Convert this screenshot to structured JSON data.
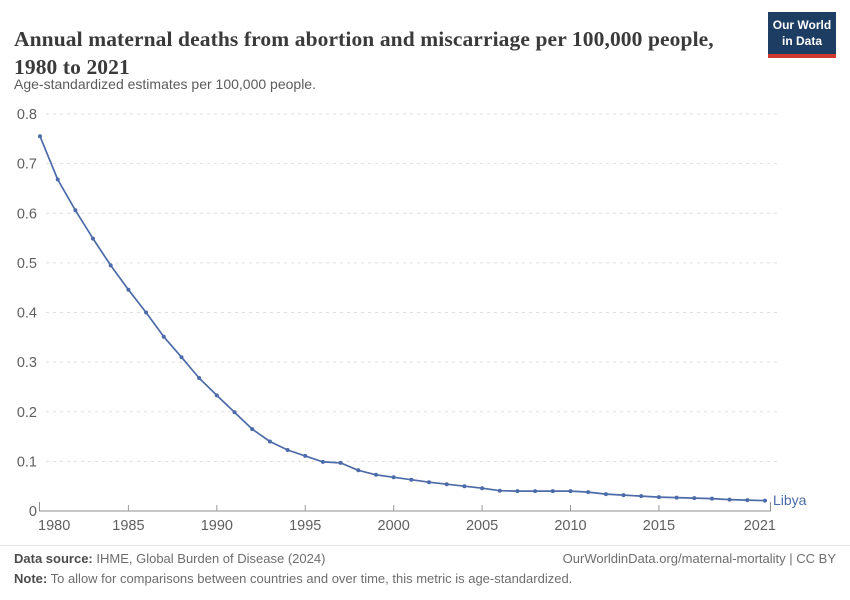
{
  "header": {
    "title": "Annual maternal deaths from abortion and miscarriage per 100,000 people, 1980 to 2021",
    "subtitle": "Age-standardized estimates per 100,000 people."
  },
  "logo": {
    "line1": "Our World",
    "line2": "in Data",
    "bg_color": "#1d3d63",
    "stripe_color": "#d0392f"
  },
  "chart_data": {
    "type": "line",
    "title": "Annual maternal deaths from abortion and miscarriage per 100,000 people, 1980 to 2021",
    "subtitle": "Age-standardized estimates per 100,000 people.",
    "xlabel": "",
    "ylabel": "",
    "xlim": [
      1980,
      2021
    ],
    "ylim": [
      0,
      0.8
    ],
    "grid": "horizontal-dashed",
    "legend": "end-of-line-label",
    "x_ticks": [
      1980,
      1985,
      1990,
      1995,
      2000,
      2005,
      2010,
      2015,
      2021
    ],
    "x_tick_labels": [
      "1980",
      "1985",
      "1990",
      "1995",
      "2000",
      "2005",
      "2010",
      "2015",
      "2021"
    ],
    "y_ticks": [
      0,
      0.1,
      0.2,
      0.3,
      0.4,
      0.5,
      0.6,
      0.7,
      0.8
    ],
    "y_tick_labels": [
      "0",
      "0.1",
      "0.2",
      "0.3",
      "0.4",
      "0.5",
      "0.6",
      "0.7",
      "0.8"
    ],
    "series": [
      {
        "name": "Libya",
        "color": "#4c6ba8",
        "x": [
          1980,
          1981,
          1982,
          1983,
          1984,
          1985,
          1986,
          1987,
          1988,
          1989,
          1990,
          1991,
          1992,
          1993,
          1994,
          1995,
          1996,
          1997,
          1998,
          1999,
          2000,
          2001,
          2002,
          2003,
          2004,
          2005,
          2006,
          2007,
          2008,
          2009,
          2010,
          2011,
          2012,
          2013,
          2014,
          2015,
          2016,
          2017,
          2018,
          2019,
          2020,
          2021
        ],
        "values": [
          0.755,
          0.668,
          0.606,
          0.549,
          0.495,
          0.446,
          0.4,
          0.351,
          0.31,
          0.268,
          0.233,
          0.199,
          0.165,
          0.14,
          0.123,
          0.111,
          0.099,
          0.097,
          0.082,
          0.073,
          0.068,
          0.063,
          0.058,
          0.054,
          0.05,
          0.046,
          0.041,
          0.04,
          0.04,
          0.04,
          0.04,
          0.038,
          0.034,
          0.032,
          0.03,
          0.028,
          0.027,
          0.026,
          0.025,
          0.023,
          0.022,
          0.021
        ]
      }
    ]
  },
  "footer": {
    "source_label": "Data source:",
    "source_text": " IHME, Global Burden of Disease (2024)",
    "rights": "OurWorldinData.org/maternal-mortality | CC BY",
    "note_label": "Note:",
    "note_text": " To allow for comparisons between countries and over time, this metric is age-standardized."
  }
}
